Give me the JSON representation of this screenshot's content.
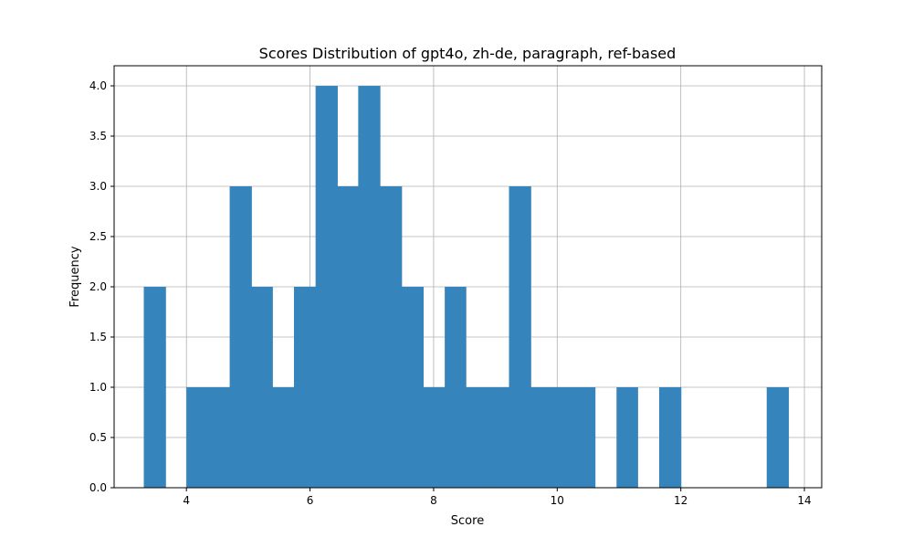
{
  "chart_data": {
    "type": "bar",
    "title": "Scores Distribution of gpt4o, zh-de, paragraph, ref-based",
    "xlabel": "Score",
    "ylabel": "Frequency",
    "xlim": [
      2.83,
      14.28
    ],
    "ylim": [
      0,
      4.2
    ],
    "grid": true,
    "color": "#3584bb",
    "xticks": [
      4,
      6,
      8,
      10,
      12,
      14
    ],
    "xtick_labels": [
      "4",
      "6",
      "8",
      "10",
      "12",
      "14"
    ],
    "yticks": [
      0,
      0.5,
      1,
      1.5,
      2,
      2.5,
      3,
      3.5,
      4
    ],
    "ytick_labels": [
      "0.0",
      "0.5",
      "1.0",
      "1.5",
      "2.0",
      "2.5",
      "3.0",
      "3.5",
      "4.0"
    ],
    "bins": [
      {
        "start": 3.31,
        "end": 3.66,
        "count": 2
      },
      {
        "start": 3.66,
        "end": 4.0,
        "count": 0
      },
      {
        "start": 4.0,
        "end": 4.35,
        "count": 1
      },
      {
        "start": 4.35,
        "end": 4.7,
        "count": 1
      },
      {
        "start": 4.7,
        "end": 5.05,
        "count": 3
      },
      {
        "start": 5.05,
        "end": 5.39,
        "count": 2
      },
      {
        "start": 5.39,
        "end": 5.74,
        "count": 1
      },
      {
        "start": 5.74,
        "end": 6.09,
        "count": 2
      },
      {
        "start": 6.09,
        "end": 6.44,
        "count": 4
      },
      {
        "start": 6.44,
        "end": 6.78,
        "count": 3
      },
      {
        "start": 6.78,
        "end": 7.13,
        "count": 4
      },
      {
        "start": 7.13,
        "end": 7.48,
        "count": 3
      },
      {
        "start": 7.48,
        "end": 7.83,
        "count": 2
      },
      {
        "start": 7.83,
        "end": 8.18,
        "count": 1
      },
      {
        "start": 8.18,
        "end": 8.52,
        "count": 2
      },
      {
        "start": 8.52,
        "end": 8.87,
        "count": 1
      },
      {
        "start": 8.87,
        "end": 9.22,
        "count": 1
      },
      {
        "start": 9.22,
        "end": 9.57,
        "count": 3
      },
      {
        "start": 9.57,
        "end": 9.91,
        "count": 1
      },
      {
        "start": 9.91,
        "end": 10.26,
        "count": 1
      },
      {
        "start": 10.26,
        "end": 10.61,
        "count": 1
      },
      {
        "start": 10.61,
        "end": 10.96,
        "count": 0
      },
      {
        "start": 10.96,
        "end": 11.3,
        "count": 1
      },
      {
        "start": 11.3,
        "end": 11.65,
        "count": 0
      },
      {
        "start": 11.65,
        "end": 12.0,
        "count": 1
      },
      {
        "start": 12.0,
        "end": 12.35,
        "count": 0
      },
      {
        "start": 12.35,
        "end": 12.69,
        "count": 0
      },
      {
        "start": 12.69,
        "end": 13.04,
        "count": 0
      },
      {
        "start": 13.04,
        "end": 13.39,
        "count": 0
      },
      {
        "start": 13.39,
        "end": 13.74,
        "count": 1
      }
    ]
  }
}
